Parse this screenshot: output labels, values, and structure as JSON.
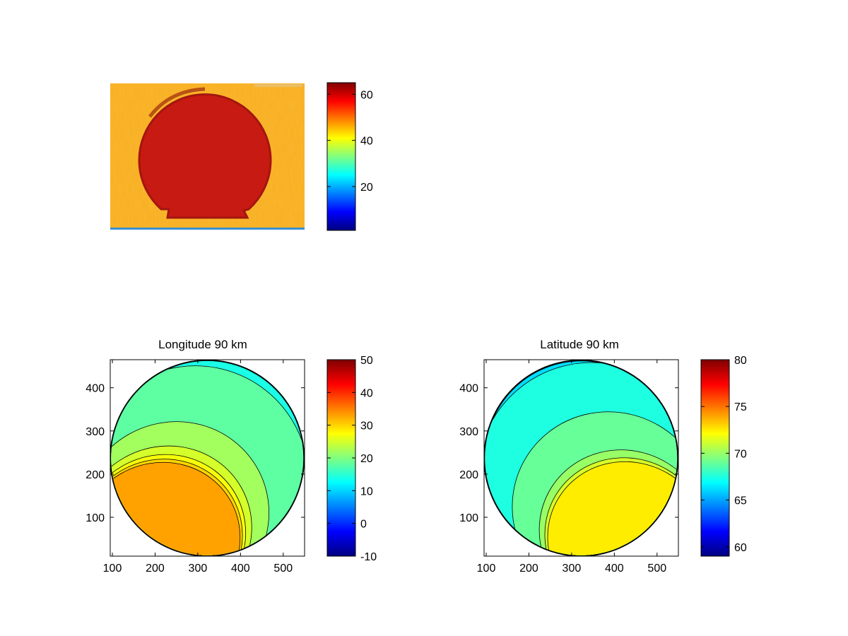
{
  "figure": {
    "background": "#ffffff",
    "panels": [
      {
        "id": "image",
        "title": "",
        "type": "heatmap",
        "kind": "false-color thermal image of a dark-red disc on an orange background",
        "colormap": "jet",
        "axes_visible": false,
        "colorbar": {
          "clim": [
            1,
            65
          ],
          "ticks": [
            "20",
            "40",
            "60"
          ],
          "tick_values": [
            20,
            40,
            60
          ]
        }
      },
      {
        "id": "longitude",
        "title": "Longitude 90 km",
        "type": "heatmap",
        "kind": "filled contour",
        "colormap": "jet",
        "xlim": [
          95,
          550
        ],
        "ylim": [
          10,
          465
        ],
        "xticks": [
          "100",
          "200",
          "300",
          "400",
          "500"
        ],
        "xtick_values": [
          100,
          200,
          300,
          400,
          500
        ],
        "yticks": [
          "100",
          "200",
          "300",
          "400"
        ],
        "ytick_values": [
          100,
          200,
          300,
          400
        ],
        "disc": {
          "cx": 322,
          "cy": 237,
          "r": 225
        },
        "colorbar": {
          "clim": [
            -10,
            50
          ],
          "ticks": [
            "-10",
            "0",
            "10",
            "20",
            "30",
            "40",
            "50"
          ],
          "tick_values": [
            -10,
            0,
            10,
            20,
            30,
            40,
            50
          ]
        },
        "band_axis_angle_deg": 30,
        "levels": [
          {
            "t": 1.0,
            "value": 12
          },
          {
            "t": 0.8,
            "value": 14
          },
          {
            "t": 0.5,
            "value": 18
          },
          {
            "t": -0.35,
            "value": 22
          },
          {
            "t": -0.72,
            "value": 25
          },
          {
            "t": -0.85,
            "value": 27
          },
          {
            "t": -0.92,
            "value": 30
          },
          {
            "t": -0.97,
            "value": 33
          }
        ],
        "edge_levels": [
          10,
          8,
          6,
          4,
          2,
          0
        ]
      },
      {
        "id": "latitude",
        "title": "Latitude 90 km",
        "type": "heatmap",
        "kind": "filled contour",
        "colormap": "jet",
        "xlim": [
          95,
          550
        ],
        "ylim": [
          10,
          465
        ],
        "xticks": [
          "100",
          "200",
          "300",
          "400",
          "500"
        ],
        "xtick_values": [
          100,
          200,
          300,
          400,
          500
        ],
        "yticks": [
          "100",
          "200",
          "300",
          "400"
        ],
        "ytick_values": [
          100,
          200,
          300,
          400
        ],
        "disc": {
          "cx": 322,
          "cy": 237,
          "r": 225
        },
        "colorbar": {
          "clim": [
            59,
            80
          ],
          "ticks": [
            "60",
            "65",
            "70",
            "75",
            "80"
          ],
          "tick_values": [
            60,
            65,
            70,
            75,
            80
          ]
        },
        "band_axis_angle_deg": -30,
        "levels": [
          {
            "t": 1.0,
            "value": 66.2
          },
          {
            "t": 0.55,
            "value": 67.5
          },
          {
            "t": -0.2,
            "value": 69.0
          },
          {
            "t": -0.78,
            "value": 70.0
          },
          {
            "t": -0.9,
            "value": 71.3
          },
          {
            "t": -0.96,
            "value": 72.5
          }
        ],
        "edge_levels": [
          65,
          64,
          63,
          62,
          61,
          60
        ]
      }
    ]
  },
  "chart_data": [
    {
      "type": "heatmap",
      "title": "",
      "content": "thermal image, disc",
      "colorbar_range": [
        1,
        65
      ],
      "colorbar_ticks": [
        20,
        40,
        60
      ]
    },
    {
      "type": "heatmap",
      "title": "Longitude 90 km",
      "xlim": [
        95,
        550
      ],
      "ylim": [
        10,
        465
      ],
      "xticks": [
        100,
        200,
        300,
        400,
        500
      ],
      "yticks": [
        100,
        200,
        300,
        400
      ],
      "colorbar_range": [
        -10,
        50
      ],
      "colorbar_ticks": [
        -10,
        0,
        10,
        20,
        30,
        40,
        50
      ],
      "value_range_shown": [
        0,
        33
      ]
    },
    {
      "type": "heatmap",
      "title": "Latitude 90 km",
      "xlim": [
        95,
        550
      ],
      "ylim": [
        10,
        465
      ],
      "xticks": [
        100,
        200,
        300,
        400,
        500
      ],
      "yticks": [
        100,
        200,
        300,
        400
      ],
      "colorbar_range": [
        59,
        80
      ],
      "colorbar_ticks": [
        60,
        65,
        70,
        75,
        80
      ],
      "value_range_shown": [
        60,
        72.5
      ]
    }
  ]
}
